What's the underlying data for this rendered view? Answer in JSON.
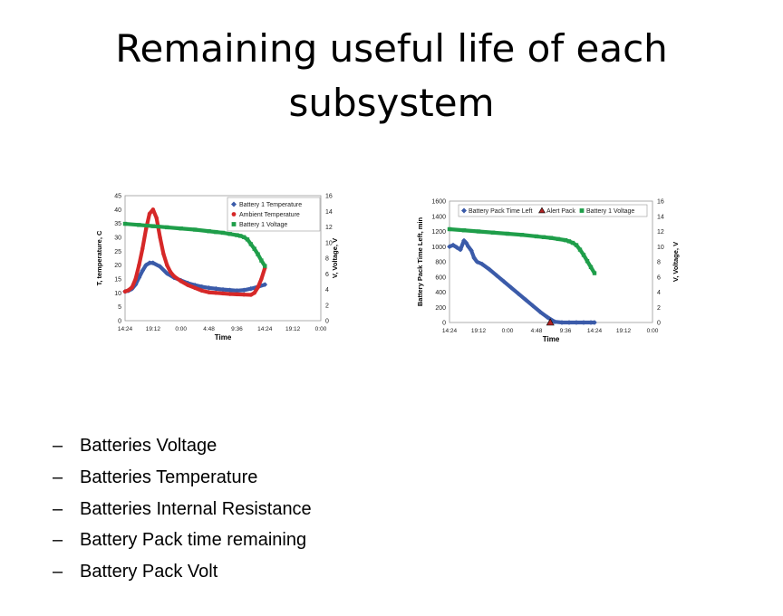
{
  "slide": {
    "title_line1": "Remaining useful life of each",
    "title_line2": "subsystem"
  },
  "bullets": [
    {
      "dash": "–",
      "text": "Batteries Voltage"
    },
    {
      "dash": "–",
      "text": "Batteries Temperature"
    },
    {
      "dash": "–",
      "text": "Batteries Internal Resistance"
    },
    {
      "dash": "–",
      "text": "Battery Pack time remaining"
    },
    {
      "dash": "–",
      "text": "Battery Pack Volt"
    }
  ],
  "chart_data": [
    {
      "type": "line",
      "xlabel": "Time",
      "ylabel": "T, temperature, C",
      "y2label": "V, Voltage, V",
      "x_ticks": [
        "14:24",
        "19:12",
        "0:00",
        "4:48",
        "9:36",
        "14:24",
        "19:12",
        "0:00"
      ],
      "ylim": [
        0,
        45
      ],
      "yticks": [
        0,
        5,
        10,
        15,
        20,
        25,
        30,
        35,
        40,
        45
      ],
      "y2lim": [
        0,
        16
      ],
      "y2ticks": [
        0,
        2,
        4,
        6,
        8,
        10,
        12,
        14,
        16
      ],
      "legend_position": "top-right",
      "series": [
        {
          "name": "Battery 1 Temperature",
          "axis": "left",
          "color": "#3b5ba9",
          "marker": "diamond",
          "x": [
            0,
            0.5,
            1,
            1.5,
            2,
            2.5,
            3,
            3.5,
            4,
            5,
            6,
            7,
            8,
            9,
            10,
            11,
            12,
            13,
            14,
            15,
            16,
            17,
            18,
            19,
            20
          ],
          "y": [
            10.5,
            10.8,
            11.5,
            13,
            15.5,
            18,
            20,
            20.8,
            20.8,
            19.5,
            17,
            15.5,
            14.5,
            13.5,
            12.8,
            12.2,
            11.8,
            11.5,
            11.2,
            11,
            10.8,
            11,
            11.5,
            12.2,
            13
          ]
        },
        {
          "name": "Ambient Temperature",
          "axis": "left",
          "color": "#d62828",
          "marker": "circle",
          "x": [
            0,
            0.5,
            1,
            1.5,
            2,
            2.5,
            3,
            3.5,
            4,
            4.5,
            5,
            5.5,
            6,
            6.5,
            7,
            8,
            9,
            10,
            11,
            12,
            13,
            14,
            15,
            16,
            17,
            18,
            18.5,
            19,
            19.5,
            20
          ],
          "y": [
            10.5,
            11,
            12,
            15,
            20,
            26,
            33,
            38.5,
            40,
            37,
            30,
            24,
            20,
            17.5,
            16,
            14.2,
            12.8,
            11.8,
            10.8,
            10.2,
            10,
            9.8,
            9.6,
            9.5,
            9.4,
            9.3,
            10,
            12,
            15,
            19
          ]
        },
        {
          "name": "Battery 1 Voltage",
          "axis": "right",
          "color": "#1f9e4a",
          "marker": "square",
          "x": [
            0,
            2,
            4,
            6,
            8,
            10,
            12,
            13,
            14,
            15,
            16,
            16.5,
            17,
            17.5,
            18,
            18.5,
            19,
            19.5,
            20
          ],
          "y": [
            12.4,
            12.25,
            12.1,
            11.95,
            11.8,
            11.65,
            11.45,
            11.35,
            11.25,
            11.1,
            10.95,
            10.85,
            10.7,
            10.4,
            9.8,
            9.2,
            8.5,
            7.7,
            7.0
          ]
        }
      ]
    },
    {
      "type": "line",
      "xlabel": "Time",
      "ylabel": "Battery Pack Time Left, min",
      "y2label": "V, Voltage, V",
      "x_ticks": [
        "14:24",
        "19:12",
        "0:00",
        "4:48",
        "9:36",
        "14:24",
        "19:12",
        "0:00"
      ],
      "ylim": [
        0,
        1600
      ],
      "yticks": [
        0,
        200,
        400,
        600,
        800,
        1000,
        1200,
        1400,
        1600
      ],
      "y2lim": [
        0,
        16
      ],
      "y2ticks": [
        0,
        2,
        4,
        6,
        8,
        10,
        12,
        14,
        16
      ],
      "legend_position": "top",
      "series": [
        {
          "name": "Battery Pack Time Left",
          "axis": "left",
          "color": "#3b5ba9",
          "marker": "diamond",
          "x": [
            0,
            0.5,
            1,
            1.5,
            2,
            2.3,
            2.6,
            3,
            3.4,
            3.8,
            4.5,
            5.5,
            6.5,
            7.5,
            8.5,
            9.5,
            10.5,
            11.5,
            12.5,
            13.5,
            14.5,
            15.5,
            16.5,
            17.5,
            18.5,
            19.5,
            20
          ],
          "y": [
            1000,
            1020,
            990,
            960,
            1080,
            1050,
            1000,
            950,
            850,
            800,
            770,
            700,
            620,
            540,
            460,
            380,
            300,
            220,
            140,
            70,
            10,
            0,
            0,
            0,
            0,
            0,
            0
          ]
        },
        {
          "name": "Alert Pack",
          "axis": "left",
          "color": "#b22222",
          "marker": "triangle",
          "x": [
            13.9
          ],
          "y": [
            0
          ]
        },
        {
          "name": "Battery 1 Voltage",
          "axis": "right",
          "color": "#1f9e4a",
          "marker": "square",
          "x": [
            0,
            2,
            4,
            6,
            8,
            10,
            12,
            13,
            14,
            15,
            16,
            16.5,
            17,
            17.5,
            18,
            18.5,
            19,
            19.5,
            20
          ],
          "y": [
            12.3,
            12.15,
            12.0,
            11.85,
            11.7,
            11.55,
            11.35,
            11.25,
            11.15,
            11.0,
            10.85,
            10.7,
            10.5,
            10.2,
            9.6,
            8.9,
            8.1,
            7.3,
            6.5
          ]
        }
      ]
    }
  ]
}
